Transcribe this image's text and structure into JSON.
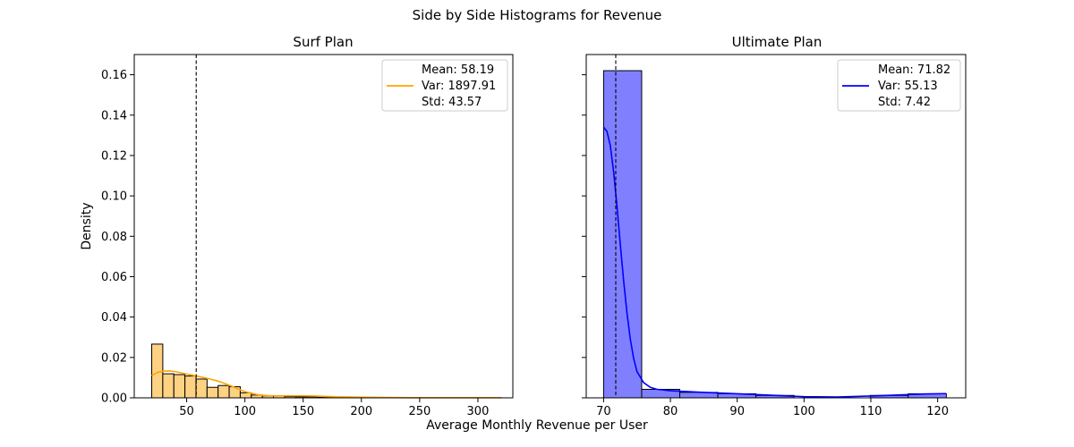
{
  "figure": {
    "title": "Side by Side Histograms for Revenue",
    "xlabel": "Average Monthly Revenue per User",
    "ylabel": "Density"
  },
  "chart_data": [
    {
      "type": "bar",
      "title": "Surf Plan",
      "xlabel": "Average Monthly Revenue per User",
      "ylabel": "Density",
      "color": "#FFA500",
      "fill_color": "#FDD283",
      "xlim": [
        5,
        330
      ],
      "ylim": [
        0,
        0.17
      ],
      "xticks": [
        50,
        100,
        150,
        200,
        250,
        300
      ],
      "yticks": [
        0.0,
        0.02,
        0.04,
        0.06,
        0.08,
        0.1,
        0.12,
        0.14,
        0.16
      ],
      "ytick_labels": [
        "0.00",
        "0.02",
        "0.04",
        "0.06",
        "0.08",
        "0.10",
        "0.12",
        "0.14",
        "0.16"
      ],
      "bins": [
        {
          "x0": 20.0,
          "x1": 29.5,
          "y": 0.0266
        },
        {
          "x0": 29.5,
          "x1": 39.0,
          "y": 0.0119
        },
        {
          "x0": 39.0,
          "x1": 48.5,
          "y": 0.0115
        },
        {
          "x0": 48.5,
          "x1": 58.0,
          "y": 0.0108
        },
        {
          "x0": 58.0,
          "x1": 67.5,
          "y": 0.0093
        },
        {
          "x0": 67.5,
          "x1": 77.0,
          "y": 0.0052
        },
        {
          "x0": 77.0,
          "x1": 86.5,
          "y": 0.0061
        },
        {
          "x0": 86.5,
          "x1": 96.0,
          "y": 0.0055
        },
        {
          "x0": 96.0,
          "x1": 105.5,
          "y": 0.0025
        },
        {
          "x0": 105.5,
          "x1": 115.0,
          "y": 0.0014
        },
        {
          "x0": 115.0,
          "x1": 124.5,
          "y": 0.001
        },
        {
          "x0": 124.5,
          "x1": 134.0,
          "y": 0.0009
        },
        {
          "x0": 134.0,
          "x1": 143.5,
          "y": 0.0006
        },
        {
          "x0": 143.5,
          "x1": 153.0,
          "y": 0.0005
        },
        {
          "x0": 153.0,
          "x1": 162.5,
          "y": 0.0005
        },
        {
          "x0": 162.5,
          "x1": 172.0,
          "y": 0.0003
        },
        {
          "x0": 172.0,
          "x1": 181.5,
          "y": 0.0002
        },
        {
          "x0": 181.5,
          "x1": 191.0,
          "y": 0.0002
        },
        {
          "x0": 191.0,
          "x1": 200.5,
          "y": 0.0001
        },
        {
          "x0": 200.5,
          "x1": 210.0,
          "y": 0.0001
        },
        {
          "x0": 210.0,
          "x1": 219.5,
          "y": 0.0001
        },
        {
          "x0": 219.5,
          "x1": 229.0,
          "y": 0.0001
        },
        {
          "x0": 229.0,
          "x1": 238.5,
          "y": 0.0001
        },
        {
          "x0": 238.5,
          "x1": 248.0,
          "y": 0.0001
        },
        {
          "x0": 248.0,
          "x1": 257.5,
          "y": 0.0001
        },
        {
          "x0": 257.5,
          "x1": 267.0,
          "y": 0.0001
        },
        {
          "x0": 267.0,
          "x1": 276.5,
          "y": 0.0001
        },
        {
          "x0": 276.5,
          "x1": 286.0,
          "y": 0.0001
        },
        {
          "x0": 286.0,
          "x1": 295.5,
          "y": 0.0001
        },
        {
          "x0": 295.5,
          "x1": 305.0,
          "y": 0.0001
        },
        {
          "x0": 305.0,
          "x1": 314.5,
          "y": 0.0001
        },
        {
          "x0": 314.5,
          "x1": 320.0,
          "y": 0.0001
        }
      ],
      "kde": [
        [
          20,
          0.011
        ],
        [
          25,
          0.0126
        ],
        [
          30,
          0.0132
        ],
        [
          35,
          0.0133
        ],
        [
          40,
          0.013
        ],
        [
          45,
          0.0124
        ],
        [
          50,
          0.0118
        ],
        [
          55,
          0.0112
        ],
        [
          60,
          0.0106
        ],
        [
          65,
          0.01
        ],
        [
          70,
          0.0093
        ],
        [
          75,
          0.0086
        ],
        [
          80,
          0.0077
        ],
        [
          85,
          0.0066
        ],
        [
          90,
          0.0054
        ],
        [
          95,
          0.0042
        ],
        [
          100,
          0.0031
        ],
        [
          105,
          0.0023
        ],
        [
          110,
          0.0017
        ],
        [
          115,
          0.0013
        ],
        [
          120,
          0.0011
        ],
        [
          130,
          0.001
        ],
        [
          140,
          0.001
        ],
        [
          150,
          0.001
        ],
        [
          160,
          0.0009
        ],
        [
          170,
          0.0007
        ],
        [
          180,
          0.0005
        ],
        [
          190,
          0.0004
        ],
        [
          200,
          0.0003
        ],
        [
          220,
          0.0002
        ],
        [
          240,
          0.0001
        ],
        [
          260,
          0.0001
        ],
        [
          280,
          0.0001
        ],
        [
          300,
          0.0001
        ],
        [
          320,
          0.0001
        ]
      ],
      "mean_line": 58.19,
      "legend": {
        "position": "upper right",
        "lines": [
          "Mean: 58.19",
          "Var: 1897.91",
          "Std: 43.57"
        ]
      }
    },
    {
      "type": "bar",
      "title": "Ultimate Plan",
      "xlabel": "Average Monthly Revenue per User",
      "color": "#0000FF",
      "fill_color": "#8080FF",
      "xlim": [
        67.4,
        124.2
      ],
      "ylim": [
        0,
        0.17
      ],
      "xticks": [
        70,
        80,
        90,
        100,
        110,
        120
      ],
      "yticks": [
        0.0,
        0.02,
        0.04,
        0.06,
        0.08,
        0.1,
        0.12,
        0.14,
        0.16
      ],
      "bins": [
        {
          "x0": 70.0,
          "x1": 75.7,
          "y": 0.162
        },
        {
          "x0": 75.7,
          "x1": 81.4,
          "y": 0.0042
        },
        {
          "x0": 81.4,
          "x1": 87.1,
          "y": 0.0027
        },
        {
          "x0": 87.1,
          "x1": 92.8,
          "y": 0.002
        },
        {
          "x0": 92.8,
          "x1": 98.5,
          "y": 0.0012
        },
        {
          "x0": 98.5,
          "x1": 104.2,
          "y": 0.0
        },
        {
          "x0": 104.2,
          "x1": 109.9,
          "y": 0.0
        },
        {
          "x0": 109.9,
          "x1": 115.6,
          "y": 0.0012
        },
        {
          "x0": 115.6,
          "x1": 121.3,
          "y": 0.002
        }
      ],
      "kde": [
        [
          70.0,
          0.134
        ],
        [
          70.5,
          0.132
        ],
        [
          71.0,
          0.125
        ],
        [
          71.5,
          0.112
        ],
        [
          72.0,
          0.095
        ],
        [
          72.5,
          0.076
        ],
        [
          73.0,
          0.058
        ],
        [
          73.5,
          0.042
        ],
        [
          74.0,
          0.029
        ],
        [
          74.5,
          0.0195
        ],
        [
          75.0,
          0.013
        ],
        [
          76.0,
          0.0075
        ],
        [
          77.0,
          0.0052
        ],
        [
          78.0,
          0.0042
        ],
        [
          80.0,
          0.0035
        ],
        [
          85.0,
          0.0027
        ],
        [
          90.0,
          0.002
        ],
        [
          95.0,
          0.0013
        ],
        [
          100.0,
          0.0006
        ],
        [
          105.0,
          0.0004
        ],
        [
          110.0,
          0.0009
        ],
        [
          115.0,
          0.0015
        ],
        [
          118.0,
          0.0019
        ],
        [
          121.3,
          0.0021
        ]
      ],
      "mean_line": 71.82,
      "legend": {
        "position": "upper right",
        "lines": [
          "Mean: 71.82",
          "Var: 55.13",
          "Std: 7.42"
        ]
      }
    }
  ]
}
